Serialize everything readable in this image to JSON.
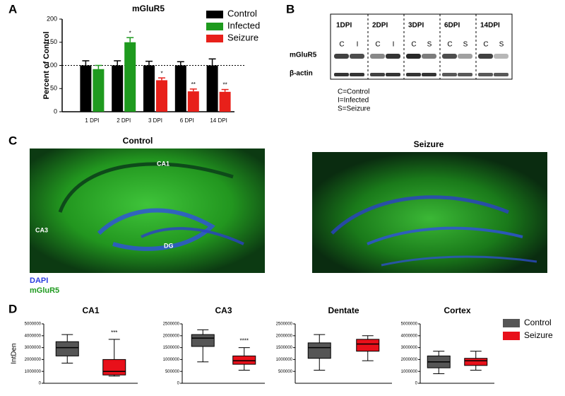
{
  "panel_labels": [
    "A",
    "B",
    "C",
    "D"
  ],
  "chart_data": [
    {
      "type": "bar",
      "title": "mGluR5",
      "ylabel": "Percent of Control",
      "categories": [
        "1 DPI",
        "2 DPI",
        "3 DPI",
        "6 DPI",
        "14 DPI"
      ],
      "series": [
        {
          "name": "Control",
          "color": "#000000",
          "values": [
            100,
            100,
            100,
            100,
            100
          ],
          "errors": [
            10,
            10,
            9,
            8,
            14
          ],
          "significance": [
            null,
            null,
            null,
            null,
            null
          ]
        },
        {
          "name": "Infected",
          "color": "#1e9a1e",
          "values": [
            92,
            150,
            null,
            null,
            null
          ],
          "errors": [
            8,
            10,
            null,
            null,
            null
          ],
          "significance": [
            null,
            "*",
            null,
            null,
            null
          ]
        },
        {
          "name": "Seizure",
          "color": "#e8201a",
          "values": [
            null,
            null,
            68,
            44,
            43
          ],
          "errors": [
            null,
            null,
            5,
            5,
            5
          ],
          "significance": [
            null,
            null,
            "*",
            "**",
            "**"
          ]
        }
      ],
      "ylim": [
        0,
        200
      ],
      "yticks": [
        0,
        50,
        100,
        150,
        200
      ],
      "reference_line": 100,
      "legend": "upper right"
    },
    {
      "type": "box",
      "title": "CA1",
      "ylabel": "IntDen",
      "annotation": "***",
      "boxes": [
        {
          "min": 1700000,
          "q1": 2300000,
          "median": 3000000,
          "q3": 3500000,
          "max": 4100000
        },
        {
          "min": 600000,
          "q1": 700000,
          "median": 1000000,
          "q3": 2000000,
          "max": 3700000
        }
      ],
      "ylim": [
        0,
        5000000
      ],
      "yticks": [
        0,
        1000000,
        2000000,
        3000000,
        4000000,
        5000000
      ]
    },
    {
      "type": "box",
      "title": "CA3",
      "annotation": "****",
      "boxes": [
        {
          "min": 900000,
          "q1": 1550000,
          "median": 1900000,
          "q3": 2050000,
          "max": 2250000
        },
        {
          "min": 550000,
          "q1": 800000,
          "median": 950000,
          "q3": 1150000,
          "max": 1500000
        }
      ],
      "ylim": [
        0,
        2500000
      ],
      "yticks": [
        0,
        500000,
        1000000,
        1500000,
        2000000,
        2500000
      ]
    },
    {
      "type": "box",
      "title": "Dentate",
      "boxes": [
        {
          "min": 550000,
          "q1": 1050000,
          "median": 1500000,
          "q3": 1700000,
          "max": 2050000
        },
        {
          "min": 950000,
          "q1": 1350000,
          "median": 1650000,
          "q3": 1850000,
          "max": 2000000
        }
      ],
      "ylim": [
        0,
        2500000
      ],
      "yticks": [
        500000,
        1000000,
        1500000,
        2000000,
        2500000
      ]
    },
    {
      "type": "box",
      "title": "Cortex",
      "boxes": [
        {
          "min": 800000,
          "q1": 1300000,
          "median": 1800000,
          "q3": 2300000,
          "max": 2700000
        },
        {
          "min": 1100000,
          "q1": 1500000,
          "median": 1900000,
          "q3": 2100000,
          "max": 2700000
        }
      ],
      "ylim": [
        0,
        5000000
      ],
      "yticks": [
        0,
        1000000,
        2000000,
        3000000,
        4000000,
        5000000
      ]
    }
  ],
  "box_legend": [
    {
      "name": "Control",
      "color": "#555555"
    },
    {
      "name": "Seizure",
      "color": "#e8101a"
    }
  ],
  "blot": {
    "timepoints": [
      "1DPI",
      "2DPI",
      "3DPI",
      "6DPI",
      "14DPI"
    ],
    "lanes": [
      [
        "C",
        "I"
      ],
      [
        "C",
        "I"
      ],
      [
        "C",
        "S"
      ],
      [
        "C",
        "S"
      ],
      [
        "C",
        "S"
      ]
    ],
    "rows": [
      "mGluR5",
      "β-actin"
    ],
    "key": [
      "C=Control",
      "I=Infected",
      "S=Seizure"
    ]
  },
  "micrographs": {
    "titles": [
      "Control",
      "Seizure"
    ],
    "regions": [
      "CA1",
      "CA3",
      "DG"
    ],
    "stains": [
      {
        "name": "DAPI",
        "color": "#2c3ee0"
      },
      {
        "name": "mGluR5",
        "color": "#1e9a1e"
      }
    ]
  }
}
